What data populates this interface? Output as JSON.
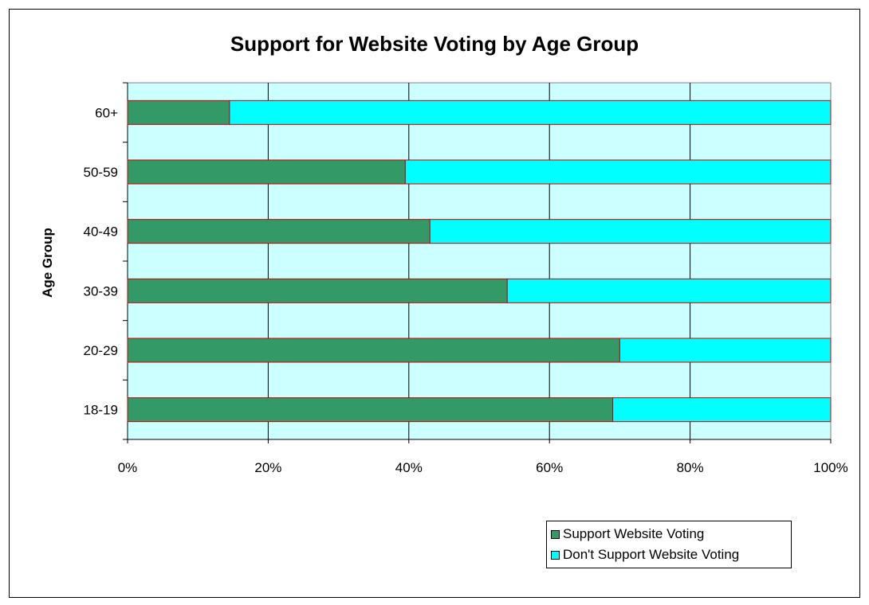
{
  "chart_data": {
    "type": "bar",
    "orientation": "horizontal",
    "stacked": true,
    "title": "Support for Website Voting by Age Group",
    "ylabel": "Age Group",
    "xlabel": "",
    "categories": [
      "18-19",
      "20-29",
      "30-39",
      "40-49",
      "50-59",
      "60+"
    ],
    "series": [
      {
        "name": "Support Website Voting",
        "values": [
          69,
          70,
          54,
          43,
          39.5,
          14.5
        ],
        "color": "#339966"
      },
      {
        "name": "Don't Support Website Voting",
        "values": [
          31,
          30,
          46,
          57,
          60.5,
          85.5
        ],
        "color": "#00FFFF"
      }
    ],
    "xlim": [
      0,
      100
    ],
    "x_ticks": [
      "0%",
      "20%",
      "40%",
      "60%",
      "80%",
      "100%"
    ],
    "grid": true,
    "plot_background": "#CCFFFF",
    "bar_border_color": "#CC0000",
    "legend_position": "bottom-right"
  }
}
